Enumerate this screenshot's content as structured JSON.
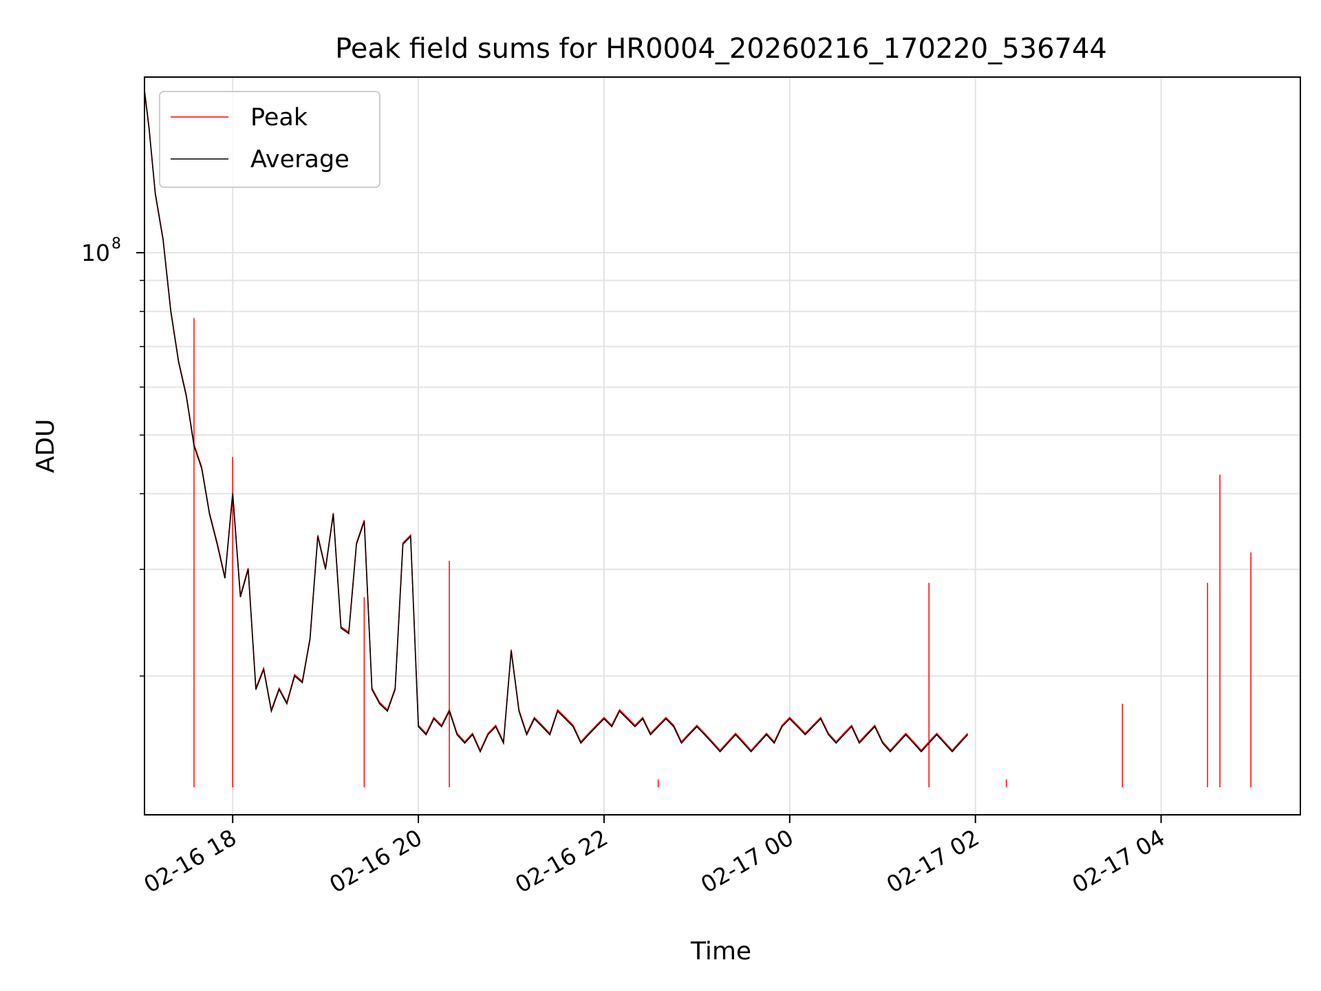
{
  "chart_data": {
    "type": "line",
    "title": "Peak field sums for HR0004_20260216_170220_536744",
    "xlabel": "Time",
    "ylabel": "ADU",
    "y_scale": "log",
    "grid": true,
    "legend_position": "top-left",
    "xlim": [
      "2026-02-16 17:03",
      "2026-02-17 05:30"
    ],
    "ylim": [
      11800000,
      195000000
    ],
    "x_ticks": [
      "2026-02-16 18:00",
      "2026-02-16 20:00",
      "2026-02-16 22:00",
      "2026-02-17 00:00",
      "2026-02-17 02:00",
      "2026-02-17 04:00"
    ],
    "x_tick_labels": [
      "02-16 18",
      "02-16 20",
      "02-16 22",
      "02-17 00",
      "02-17 02",
      "02-17 04"
    ],
    "y_major_ticks": [
      100000000
    ],
    "y_major_tick_labels": [
      "10",
      "8"
    ],
    "y_minor_ticks": [
      20000000,
      30000000,
      40000000,
      50000000,
      60000000,
      70000000,
      80000000,
      90000000
    ],
    "series": [
      {
        "name": "Peak",
        "color": "#ff0000",
        "spikes": [
          {
            "x": "2026-02-16 17:35",
            "y": 78000000
          },
          {
            "x": "2026-02-16 18:00",
            "y": 46000000
          },
          {
            "x": "2026-02-16 19:25",
            "y": 27000000
          },
          {
            "x": "2026-02-16 20:20",
            "y": 31000000
          },
          {
            "x": "2026-02-16 22:35",
            "y": 13500000
          },
          {
            "x": "2026-02-17 01:30",
            "y": 28500000
          },
          {
            "x": "2026-02-17 02:20",
            "y": 13500000
          },
          {
            "x": "2026-02-17 03:35",
            "y": 18000000
          },
          {
            "x": "2026-02-17 04:30",
            "y": 28500000
          },
          {
            "x": "2026-02-17 04:38",
            "y": 43000000
          },
          {
            "x": "2026-02-17 04:58",
            "y": 32000000
          }
        ]
      },
      {
        "name": "Average",
        "color": "#000000",
        "points": [
          [
            "2026-02-16 17:03",
            185000000
          ],
          [
            "2026-02-16 17:06",
            160000000
          ],
          [
            "2026-02-16 17:10",
            125000000
          ],
          [
            "2026-02-16 17:15",
            105000000
          ],
          [
            "2026-02-16 17:20",
            80000000
          ],
          [
            "2026-02-16 17:25",
            66000000
          ],
          [
            "2026-02-16 17:30",
            58000000
          ],
          [
            "2026-02-16 17:35",
            48000000
          ],
          [
            "2026-02-16 17:40",
            44000000
          ],
          [
            "2026-02-16 17:45",
            37000000
          ],
          [
            "2026-02-16 17:50",
            33000000
          ],
          [
            "2026-02-16 17:55",
            29000000
          ],
          [
            "2026-02-16 18:00",
            40000000
          ],
          [
            "2026-02-16 18:05",
            27000000
          ],
          [
            "2026-02-16 18:10",
            30000000
          ],
          [
            "2026-02-16 18:15",
            19000000
          ],
          [
            "2026-02-16 18:20",
            20500000
          ],
          [
            "2026-02-16 18:25",
            17500000
          ],
          [
            "2026-02-16 18:30",
            19000000
          ],
          [
            "2026-02-16 18:35",
            18000000
          ],
          [
            "2026-02-16 18:40",
            20000000
          ],
          [
            "2026-02-16 18:45",
            19500000
          ],
          [
            "2026-02-16 18:50",
            23000000
          ],
          [
            "2026-02-16 18:55",
            34000000
          ],
          [
            "2026-02-16 19:00",
            30000000
          ],
          [
            "2026-02-16 19:05",
            37000000
          ],
          [
            "2026-02-16 19:10",
            24000000
          ],
          [
            "2026-02-16 19:15",
            23500000
          ],
          [
            "2026-02-16 19:20",
            33000000
          ],
          [
            "2026-02-16 19:25",
            36000000
          ],
          [
            "2026-02-16 19:30",
            19000000
          ],
          [
            "2026-02-16 19:35",
            18000000
          ],
          [
            "2026-02-16 19:40",
            17500000
          ],
          [
            "2026-02-16 19:45",
            19000000
          ],
          [
            "2026-02-16 19:50",
            33000000
          ],
          [
            "2026-02-16 19:55",
            34000000
          ],
          [
            "2026-02-16 20:00",
            16500000
          ],
          [
            "2026-02-16 20:05",
            16000000
          ],
          [
            "2026-02-16 20:10",
            17000000
          ],
          [
            "2026-02-16 20:15",
            16500000
          ],
          [
            "2026-02-16 20:20",
            17500000
          ],
          [
            "2026-02-16 20:25",
            16000000
          ],
          [
            "2026-02-16 20:30",
            15500000
          ],
          [
            "2026-02-16 20:35",
            16000000
          ],
          [
            "2026-02-16 20:40",
            15000000
          ],
          [
            "2026-02-16 20:45",
            16000000
          ],
          [
            "2026-02-16 20:50",
            16500000
          ],
          [
            "2026-02-16 20:55",
            15500000
          ],
          [
            "2026-02-16 21:00",
            22000000
          ],
          [
            "2026-02-16 21:05",
            17500000
          ],
          [
            "2026-02-16 21:10",
            16000000
          ],
          [
            "2026-02-16 21:15",
            17000000
          ],
          [
            "2026-02-16 21:20",
            16500000
          ],
          [
            "2026-02-16 21:25",
            16000000
          ],
          [
            "2026-02-16 21:30",
            17500000
          ],
          [
            "2026-02-16 21:35",
            17000000
          ],
          [
            "2026-02-16 21:40",
            16500000
          ],
          [
            "2026-02-16 21:45",
            15500000
          ],
          [
            "2026-02-16 21:50",
            16000000
          ],
          [
            "2026-02-16 21:55",
            16500000
          ],
          [
            "2026-02-16 22:00",
            17000000
          ],
          [
            "2026-02-16 22:05",
            16500000
          ],
          [
            "2026-02-16 22:10",
            17500000
          ],
          [
            "2026-02-16 22:15",
            17000000
          ],
          [
            "2026-02-16 22:20",
            16500000
          ],
          [
            "2026-02-16 22:25",
            17000000
          ],
          [
            "2026-02-16 22:30",
            16000000
          ],
          [
            "2026-02-16 22:35",
            16500000
          ],
          [
            "2026-02-16 22:40",
            17000000
          ],
          [
            "2026-02-16 22:45",
            16500000
          ],
          [
            "2026-02-16 22:50",
            15500000
          ],
          [
            "2026-02-16 22:55",
            16000000
          ],
          [
            "2026-02-16 23:00",
            16500000
          ],
          [
            "2026-02-16 23:05",
            16000000
          ],
          [
            "2026-02-16 23:10",
            15500000
          ],
          [
            "2026-02-16 23:15",
            15000000
          ],
          [
            "2026-02-16 23:20",
            15500000
          ],
          [
            "2026-02-16 23:25",
            16000000
          ],
          [
            "2026-02-16 23:30",
            15500000
          ],
          [
            "2026-02-16 23:35",
            15000000
          ],
          [
            "2026-02-16 23:40",
            15500000
          ],
          [
            "2026-02-16 23:45",
            16000000
          ],
          [
            "2026-02-16 23:50",
            15500000
          ],
          [
            "2026-02-16 23:55",
            16500000
          ],
          [
            "2026-02-17 00:00",
            17000000
          ],
          [
            "2026-02-17 00:05",
            16500000
          ],
          [
            "2026-02-17 00:10",
            16000000
          ],
          [
            "2026-02-17 00:15",
            16500000
          ],
          [
            "2026-02-17 00:20",
            17000000
          ],
          [
            "2026-02-17 00:25",
            16000000
          ],
          [
            "2026-02-17 00:30",
            15500000
          ],
          [
            "2026-02-17 00:35",
            16000000
          ],
          [
            "2026-02-17 00:40",
            16500000
          ],
          [
            "2026-02-17 00:45",
            15500000
          ],
          [
            "2026-02-17 00:50",
            16000000
          ],
          [
            "2026-02-17 00:55",
            16500000
          ],
          [
            "2026-02-17 01:00",
            15500000
          ],
          [
            "2026-02-17 01:05",
            15000000
          ],
          [
            "2026-02-17 01:10",
            15500000
          ],
          [
            "2026-02-17 01:15",
            16000000
          ],
          [
            "2026-02-17 01:20",
            15500000
          ],
          [
            "2026-02-17 01:25",
            15000000
          ],
          [
            "2026-02-17 01:30",
            15500000
          ],
          [
            "2026-02-17 01:35",
            16000000
          ],
          [
            "2026-02-17 01:40",
            15500000
          ],
          [
            "2026-02-17 01:45",
            15000000
          ],
          [
            "2026-02-17 01:50",
            15500000
          ],
          [
            "2026-02-17 01:55",
            16000000
          ]
        ]
      }
    ]
  }
}
